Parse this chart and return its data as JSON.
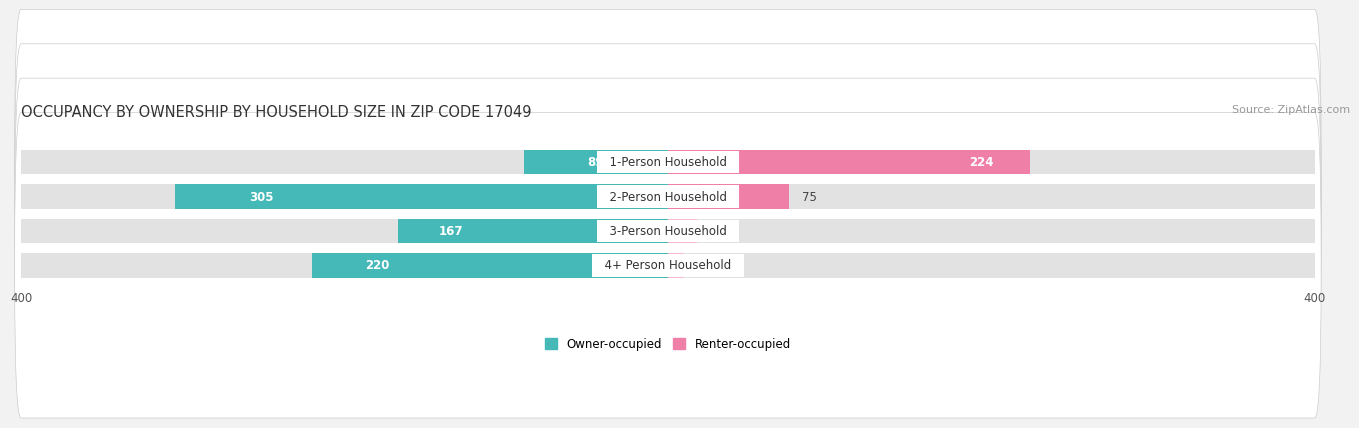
{
  "title": "OCCUPANCY BY OWNERSHIP BY HOUSEHOLD SIZE IN ZIP CODE 17049",
  "source": "Source: ZipAtlas.com",
  "categories": [
    "1-Person Household",
    "2-Person Household",
    "3-Person Household",
    "4+ Person Household"
  ],
  "owner_values": [
    89,
    305,
    167,
    220
  ],
  "renter_values": [
    224,
    75,
    18,
    10
  ],
  "owner_color": "#45b8b8",
  "renter_color": "#f07fa8",
  "renter_color_light": "#f8bbd0",
  "background_color": "#f2f2f2",
  "bar_bg_color": "#e2e2e2",
  "row_bg_color": "#e8e8e8",
  "max_val": 400,
  "title_fontsize": 10.5,
  "label_fontsize": 8.5,
  "tick_fontsize": 8.5,
  "legend_fontsize": 8.5,
  "source_fontsize": 8
}
